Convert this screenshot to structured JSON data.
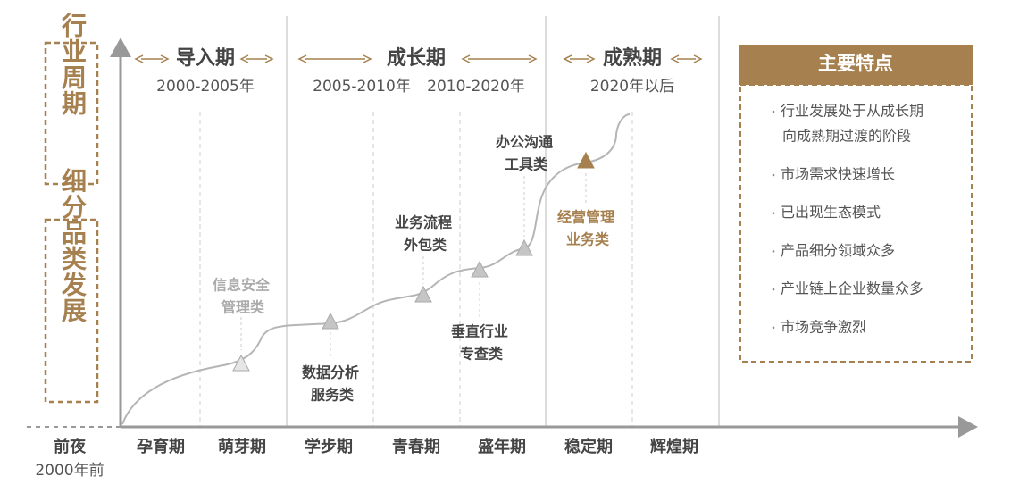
{
  "side_labels": [
    "行业周期",
    "细分品类发展"
  ],
  "phases": [
    {
      "name": "导入期",
      "periods": [
        "2000-2005年"
      ]
    },
    {
      "name": "成长期",
      "periods": [
        "2005-2010年",
        "2010-2020年"
      ]
    },
    {
      "name": "成熟期",
      "periods": [
        "2020年以后"
      ]
    }
  ],
  "stages": [
    "前夜",
    "孕育期",
    "萌芽期",
    "学步期",
    "青春期",
    "盛年期",
    "稳定期",
    "辉煌期"
  ],
  "pre_period": "2000年前",
  "categories": [
    {
      "lines": [
        "信息安全",
        "管理类"
      ]
    },
    {
      "lines": [
        "数据分析",
        "服务类"
      ]
    },
    {
      "lines": [
        "业务流程",
        "外包类"
      ]
    },
    {
      "lines": [
        "垂直行业",
        "专查类"
      ]
    },
    {
      "lines": [
        "办公沟通",
        "工具类"
      ]
    },
    {
      "lines": [
        "经营管理",
        "业务类"
      ]
    }
  ],
  "features": {
    "title": "主要特点",
    "items": [
      [
        "行业发展处于从成长期",
        "向成熟期过渡的阶段"
      ],
      [
        "市场需求快速增长"
      ],
      [
        "已出现生态模式"
      ],
      [
        "产品细分领域众多"
      ],
      [
        "产业链上企业数量众多"
      ],
      [
        "市场竞争激烈"
      ]
    ]
  }
}
